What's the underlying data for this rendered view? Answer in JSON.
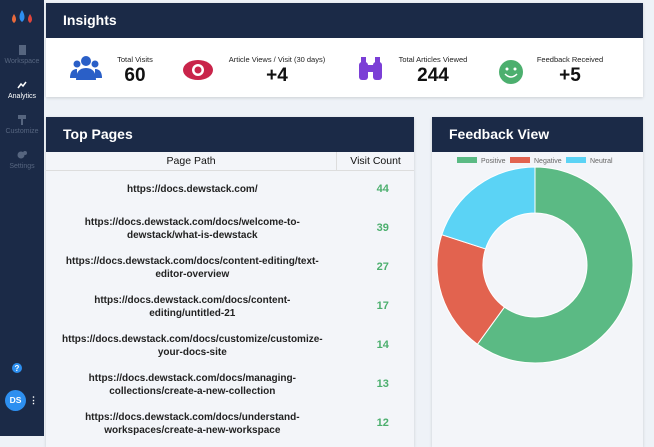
{
  "sidebar": {
    "nav": [
      {
        "label": "Workspace"
      },
      {
        "label": "Analytics"
      },
      {
        "label": "Customize"
      },
      {
        "label": "Settings"
      }
    ],
    "avatar": "DS"
  },
  "insights": {
    "title": "Insights",
    "stats": [
      {
        "label": "Total Visits",
        "value": "60"
      },
      {
        "label": "Article Views / Visit (30 days)",
        "value": "+4"
      },
      {
        "label": "Total Articles Viewed",
        "value": "244"
      },
      {
        "label": "Feedback Received",
        "value": "+5"
      }
    ]
  },
  "top_pages": {
    "title": "Top Pages",
    "columns": [
      "Page Path",
      "Visit Count"
    ],
    "rows": [
      [
        "https://docs.dewstack.com/",
        44
      ],
      [
        "https://docs.dewstack.com/docs/welcome-to-dewstack/what-is-dewstack",
        39
      ],
      [
        "https://docs.dewstack.com/docs/content-editing/text-editor-overview",
        27
      ],
      [
        "https://docs.dewstack.com/docs/content-editing/untitled-21",
        17
      ],
      [
        "https://docs.dewstack.com/docs/customize/customize-your-docs-site",
        14
      ],
      [
        "https://docs.dewstack.com/docs/managing-collections/create-a-new-collection",
        13
      ],
      [
        "https://docs.dewstack.com/docs/understand-workspaces/create-a-new-workspace",
        12
      ]
    ]
  },
  "chart_data": {
    "type": "pie",
    "title": "Feedback View",
    "donut": true,
    "categories": [
      "Positive",
      "Negative",
      "Neutral"
    ],
    "values": [
      3,
      1,
      1
    ],
    "colors": [
      "#5bba84",
      "#e2634f",
      "#5bd3f5"
    ]
  }
}
